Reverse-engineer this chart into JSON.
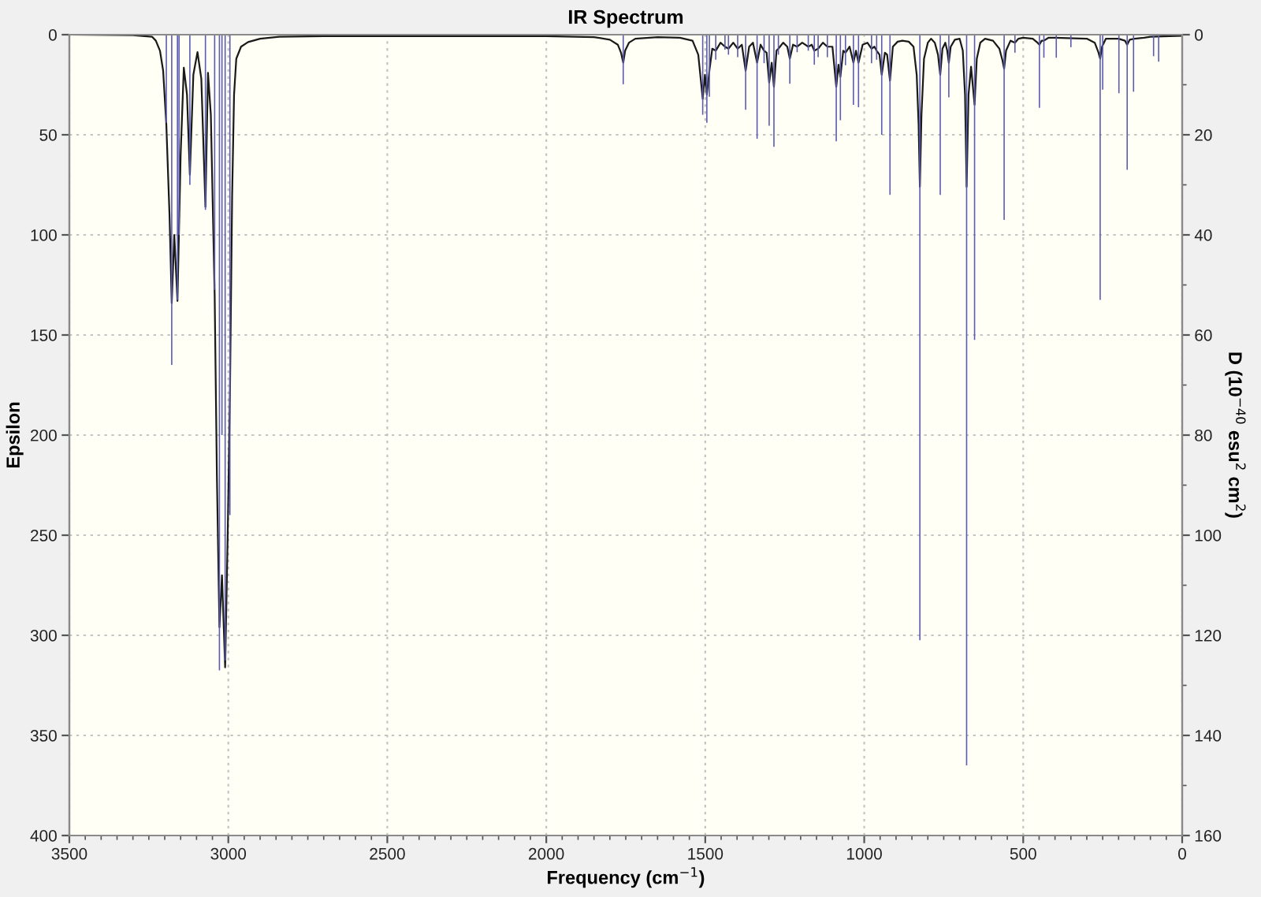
{
  "chart_data": {
    "type": "line",
    "title": "IR Spectrum",
    "xlabel": "Frequency (cm$^{−1}$)",
    "ylabel": "Epsilon",
    "y2label": "D (10$^{−40}$ esu$^{2}$ cm$^{2}$)",
    "xlim": [
      3500,
      0
    ],
    "ylim": [
      400,
      0
    ],
    "y2lim": [
      160,
      0
    ],
    "xticks": [
      3500,
      {
        "value": 3450,
        "label": null
      },
      {
        "value": 3400,
        "label": null
      },
      {
        "value": 3350,
        "label": null
      },
      {
        "value": 3300,
        "label": null
      },
      {
        "value": 3250,
        "label": null
      },
      {
        "value": 3200,
        "label": null
      },
      {
        "value": 3150,
        "label": null
      },
      {
        "value": 3100,
        "label": null
      },
      {
        "value": 3050,
        "label": null
      },
      3000,
      {
        "value": 2950,
        "label": null
      },
      {
        "value": 2900,
        "label": null
      },
      {
        "value": 2850,
        "label": null
      },
      {
        "value": 2800,
        "label": null
      },
      {
        "value": 2750,
        "label": null
      },
      {
        "value": 2700,
        "label": null
      },
      {
        "value": 2650,
        "label": null
      },
      {
        "value": 2600,
        "label": null
      },
      {
        "value": 2550,
        "label": null
      },
      2500,
      {
        "value": 2450,
        "label": null
      },
      {
        "value": 2400,
        "label": null
      },
      {
        "value": 2350,
        "label": null
      },
      {
        "value": 2300,
        "label": null
      },
      {
        "value": 2250,
        "label": null
      },
      {
        "value": 2200,
        "label": null
      },
      {
        "value": 2150,
        "label": null
      },
      {
        "value": 2100,
        "label": null
      },
      {
        "value": 2050,
        "label": null
      },
      2000,
      {
        "value": 1950,
        "label": null
      },
      {
        "value": 1900,
        "label": null
      },
      {
        "value": 1850,
        "label": null
      },
      {
        "value": 1800,
        "label": null
      },
      {
        "value": 1750,
        "label": null
      },
      {
        "value": 1700,
        "label": null
      },
      {
        "value": 1650,
        "label": null
      },
      {
        "value": 1600,
        "label": null
      },
      {
        "value": 1550,
        "label": null
      },
      1500,
      {
        "value": 1450,
        "label": null
      },
      {
        "value": 1400,
        "label": null
      },
      {
        "value": 1350,
        "label": null
      },
      {
        "value": 1300,
        "label": null
      },
      {
        "value": 1250,
        "label": null
      },
      {
        "value": 1200,
        "label": null
      },
      {
        "value": 1150,
        "label": null
      },
      {
        "value": 1100,
        "label": null
      },
      {
        "value": 1050,
        "label": null
      },
      1000,
      {
        "value": 950,
        "label": null
      },
      {
        "value": 900,
        "label": null
      },
      {
        "value": 850,
        "label": null
      },
      {
        "value": 800,
        "label": null
      },
      {
        "value": 750,
        "label": null
      },
      {
        "value": 700,
        "label": null
      },
      {
        "value": 650,
        "label": null
      },
      {
        "value": 600,
        "label": null
      },
      {
        "value": 550,
        "label": null
      },
      500,
      {
        "value": 450,
        "label": null
      },
      {
        "value": 400,
        "label": null
      },
      {
        "value": 350,
        "label": null
      },
      {
        "value": 300,
        "label": null
      },
      {
        "value": 250,
        "label": null
      },
      {
        "value": 200,
        "label": null
      },
      {
        "value": 150,
        "label": null
      },
      {
        "value": 100,
        "label": null
      },
      {
        "value": 50,
        "label": null
      },
      0
    ],
    "yticks": [
      0,
      50,
      100,
      150,
      200,
      250,
      300,
      350,
      400
    ],
    "y2ticks": [
      0,
      {
        "value": 10,
        "label": null
      },
      20,
      {
        "value": 30,
        "label": null
      },
      40,
      {
        "value": 50,
        "label": null
      },
      60,
      {
        "value": 70,
        "label": null
      },
      80,
      {
        "value": 90,
        "label": null
      },
      100,
      {
        "value": 110,
        "label": null
      },
      120,
      {
        "value": 130,
        "label": null
      },
      140,
      {
        "value": 150,
        "label": null
      },
      160
    ],
    "grid": true,
    "series": [
      {
        "type": "bar",
        "axis": "y2",
        "color": "#5c5cb0",
        "x": [
          3195,
          3178,
          3160,
          3155,
          3121,
          3072,
          3043,
          3028,
          3020,
          3010,
          2995,
          1758,
          1508,
          1495,
          1487,
          1467,
          1438,
          1427,
          1398,
          1373,
          1337,
          1315,
          1299,
          1284,
          1270,
          1234,
          1211,
          1176,
          1157,
          1145,
          1116,
          1088,
          1075,
          1059,
          1034,
          1018,
          977,
          961,
          945,
          919,
          825,
          761,
          734,
          678,
          653,
          560,
          526,
          449,
          435,
          396,
          350,
          258,
          250,
          199,
          173,
          153,
          90,
          74
        ],
        "values": [
          17.6,
          66,
          53,
          40,
          30,
          35,
          51,
          127,
          80,
          125,
          96,
          9.9,
          16,
          17.6,
          12.4,
          5,
          3,
          4,
          4.5,
          15,
          20.8,
          5.7,
          18.2,
          22.4,
          4,
          9.8,
          3.5,
          3.2,
          6,
          4.5,
          4.5,
          21.3,
          17.1,
          6.1,
          14,
          14.5,
          5.7,
          5,
          20,
          32,
          121,
          32,
          12.5,
          146,
          61,
          37,
          3.6,
          14.6,
          4.6,
          4.6,
          2.5,
          53,
          11,
          11.7,
          27,
          11.4,
          4.3,
          5.4
        ]
      },
      {
        "axis": "y",
        "color": "#1a1a1a",
        "x": [
          3500,
          3300,
          3240,
          3228,
          3215,
          3205,
          3195,
          3185,
          3178,
          3170,
          3160,
          3150,
          3140,
          3130,
          3121,
          3110,
          3097,
          3085,
          3072,
          3064,
          3055,
          3043,
          3036,
          3028,
          3020,
          3010,
          3002,
          2995,
          2988,
          2982,
          2975,
          2960,
          2938,
          2900,
          2840,
          2700,
          2000,
          1850,
          1800,
          1775,
          1765,
          1758,
          1752,
          1740,
          1720,
          1650,
          1580,
          1540,
          1522,
          1508,
          1501,
          1495,
          1487,
          1478,
          1467,
          1452,
          1438,
          1427,
          1412,
          1398,
          1385,
          1373,
          1362,
          1350,
          1337,
          1326,
          1315,
          1307,
          1299,
          1291,
          1284,
          1276,
          1270,
          1255,
          1242,
          1234,
          1224,
          1211,
          1195,
          1176,
          1165,
          1157,
          1145,
          1130,
          1116,
          1100,
          1088,
          1081,
          1075,
          1066,
          1059,
          1046,
          1034,
          1026,
          1018,
          1005,
          990,
          977,
          968,
          961,
          952,
          945,
          935,
          928,
          919,
          910,
          895,
          880,
          860,
          845,
          835,
          829,
          825,
          820,
          812,
          800,
          790,
          778,
          768,
          761,
          754,
          745,
          739,
          734,
          728,
          715,
          700,
          690,
          683,
          678,
          672,
          664,
          653,
          646,
          635,
          620,
          595,
          575,
          565,
          560,
          554,
          540,
          526,
          515,
          500,
          470,
          455,
          449,
          442,
          435,
          420,
          400,
          300,
          275,
          263,
          258,
          252,
          240,
          200,
          180,
          173,
          165,
          150,
          120,
          100,
          60,
          0
        ],
        "values": [
          0,
          0.3,
          1,
          3,
          8,
          18,
          45,
          90,
          134,
          100,
          133,
          60,
          16.5,
          30,
          70,
          20,
          8.7,
          22,
          86,
          19,
          40,
          130,
          220,
          296,
          270,
          316,
          250,
          180,
          80,
          30,
          12,
          6,
          3.7,
          2,
          1,
          0.7,
          0.7,
          1.2,
          2.5,
          5,
          9,
          14,
          8,
          4,
          2,
          1.2,
          1.5,
          3,
          10,
          32,
          20,
          30,
          18,
          7,
          8,
          4,
          6,
          7,
          4,
          7,
          5,
          18,
          6,
          4,
          14,
          5,
          8,
          9,
          24,
          14,
          26,
          8,
          7,
          4,
          6,
          12,
          5,
          6,
          4,
          6,
          5,
          8,
          7,
          4,
          6,
          6,
          26,
          15,
          21,
          8,
          9,
          6,
          14,
          8,
          14,
          5,
          4,
          7,
          6,
          8,
          10,
          20,
          9,
          10,
          23,
          6,
          3.5,
          3,
          3.5,
          6,
          20,
          45,
          76,
          40,
          12,
          4,
          2,
          4,
          10,
          20,
          7,
          4,
          8,
          14,
          6,
          2.5,
          2,
          8,
          30,
          76,
          30,
          16,
          35,
          12,
          4,
          2,
          3,
          7,
          13,
          17,
          8,
          3,
          4,
          2,
          1.5,
          2,
          4,
          5,
          3,
          3,
          1.5,
          1.5,
          2,
          4,
          9,
          12,
          6,
          2,
          2,
          3,
          5,
          2.5,
          2,
          1.5,
          1,
          0.8,
          0.5
        ]
      }
    ]
  }
}
